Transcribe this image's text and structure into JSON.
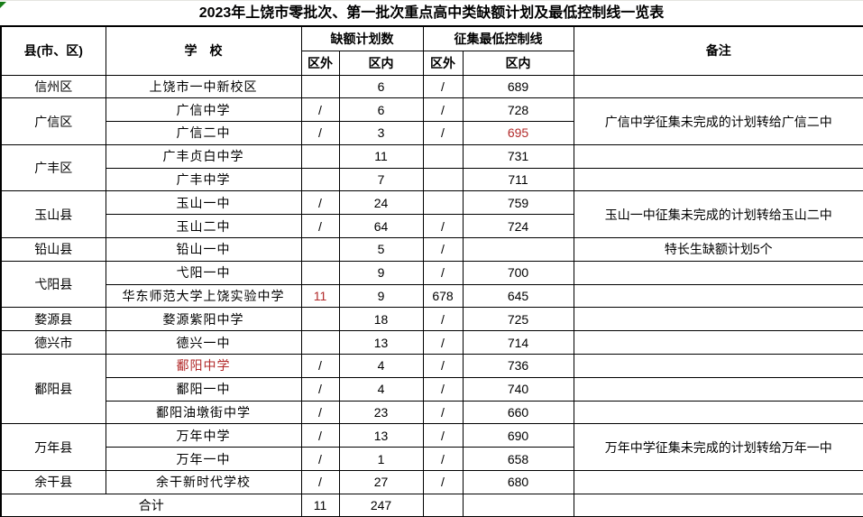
{
  "title": "2023年上饶市零批次、第一批次重点高中类缺额计划及最低控制线一览表",
  "colors": {
    "red_value": "#b22a2a",
    "flag_green": "#177d17",
    "grid_line": "#000000"
  },
  "header": {
    "county": "县(市、区)",
    "school": "学　校",
    "quota_group": "缺额计划数",
    "line_group": "征集最低控制线",
    "quota_out": "区外",
    "quota_in": "区内",
    "line_out": "区外",
    "line_in": "区内",
    "remark": "备注"
  },
  "table": {
    "rows": [
      {
        "county": {
          "text": "信州区",
          "span": 1
        },
        "school": "上饶市一中新校区",
        "quota_out": "",
        "quota_in": "6",
        "line_out": "/",
        "line_in": "689",
        "remark": {
          "text": "",
          "span": 1
        }
      },
      {
        "county": {
          "text": "广信区",
          "span": 2
        },
        "school": "广信中学",
        "quota_out": "/",
        "quota_in": "6",
        "line_out": "/",
        "line_in": "728",
        "remark": {
          "text": "广信中学征集未完成的计划转给广信二中",
          "span": 2
        }
      },
      {
        "school": "广信二中",
        "quota_out": "/",
        "quota_in": "3",
        "line_out": "/",
        "line_in": "695",
        "line_in_red": true
      },
      {
        "county": {
          "text": "广丰区",
          "span": 2
        },
        "school": "广丰贞白中学",
        "quota_out": "",
        "quota_in": "11",
        "line_out": "",
        "line_in": "731",
        "remark": {
          "text": "",
          "span": 1
        }
      },
      {
        "school": "广丰中学",
        "quota_out": "",
        "quota_in": "7",
        "line_out": "",
        "line_in": "711",
        "remark": {
          "text": "",
          "span": 1
        }
      },
      {
        "county": {
          "text": "玉山县",
          "span": 2
        },
        "school": "玉山一中",
        "quota_out": "/",
        "quota_in": "24",
        "line_out": "",
        "line_in": "759",
        "remark": {
          "text": "玉山一中征集未完成的计划转给玉山二中",
          "span": 2
        }
      },
      {
        "school": "玉山二中",
        "quota_out": "/",
        "quota_in": "64",
        "line_out": "/",
        "line_in": "724"
      },
      {
        "county": {
          "text": "铅山县",
          "span": 1
        },
        "school": "铅山一中",
        "quota_out": "",
        "quota_in": "5",
        "line_out": "/",
        "line_in": "",
        "remark": {
          "text": "特长生缺额计划5个",
          "span": 1
        }
      },
      {
        "county": {
          "text": "弋阳县",
          "span": 2
        },
        "school": "弋阳一中",
        "quota_out": "",
        "quota_in": "9",
        "line_out": "/",
        "line_in": "700",
        "remark": {
          "text": "",
          "span": 1
        }
      },
      {
        "school": "华东师范大学上饶实验中学",
        "quota_out": "11",
        "quota_out_red": true,
        "quota_in": "9",
        "line_out": "678",
        "line_in": "645",
        "remark": {
          "text": "",
          "span": 1
        }
      },
      {
        "county": {
          "text": "婺源县",
          "span": 1
        },
        "school": "婺源紫阳中学",
        "quota_out": "",
        "quota_in": "18",
        "line_out": "/",
        "line_in": "725",
        "remark": {
          "text": "",
          "span": 1
        }
      },
      {
        "county": {
          "text": "德兴市",
          "span": 1
        },
        "school": "德兴一中",
        "quota_out": "",
        "quota_in": "13",
        "line_out": "/",
        "line_in": "714",
        "remark": {
          "text": "",
          "span": 1
        }
      },
      {
        "county": {
          "text": "鄱阳县",
          "span": 3
        },
        "school": "鄱阳中学",
        "school_red": true,
        "quota_out": "/",
        "quota_in": "4",
        "line_out": "/",
        "line_in": "736",
        "remark": {
          "text": "",
          "span": 1
        }
      },
      {
        "school": "鄱阳一中",
        "quota_out": "/",
        "quota_in": "4",
        "line_out": "/",
        "line_in": "740",
        "remark": {
          "text": "",
          "span": 1
        }
      },
      {
        "school": "鄱阳油墩街中学",
        "quota_out": "/",
        "quota_in": "23",
        "line_out": "/",
        "line_in": "660",
        "remark": {
          "text": "",
          "span": 1
        }
      },
      {
        "county": {
          "text": "万年县",
          "span": 2
        },
        "school": "万年中学",
        "quota_out": "/",
        "quota_in": "13",
        "line_out": "/",
        "line_in": "690",
        "remark": {
          "text": "万年中学征集未完成的计划转给万年一中",
          "span": 2
        }
      },
      {
        "school": "万年一中",
        "quota_out": "/",
        "quota_in": "1",
        "line_out": "/",
        "line_in": "658"
      },
      {
        "county": {
          "text": "余干县",
          "span": 1
        },
        "school": "余干新时代学校",
        "quota_out": "/",
        "quota_in": "27",
        "line_out": "/",
        "line_in": "680",
        "remark": {
          "text": "",
          "span": 1
        }
      },
      {
        "total": true,
        "label": "合计",
        "quota_out": "11",
        "quota_in": "247",
        "line_out": "",
        "line_in": "",
        "remark": {
          "text": "",
          "span": 1
        }
      }
    ]
  }
}
